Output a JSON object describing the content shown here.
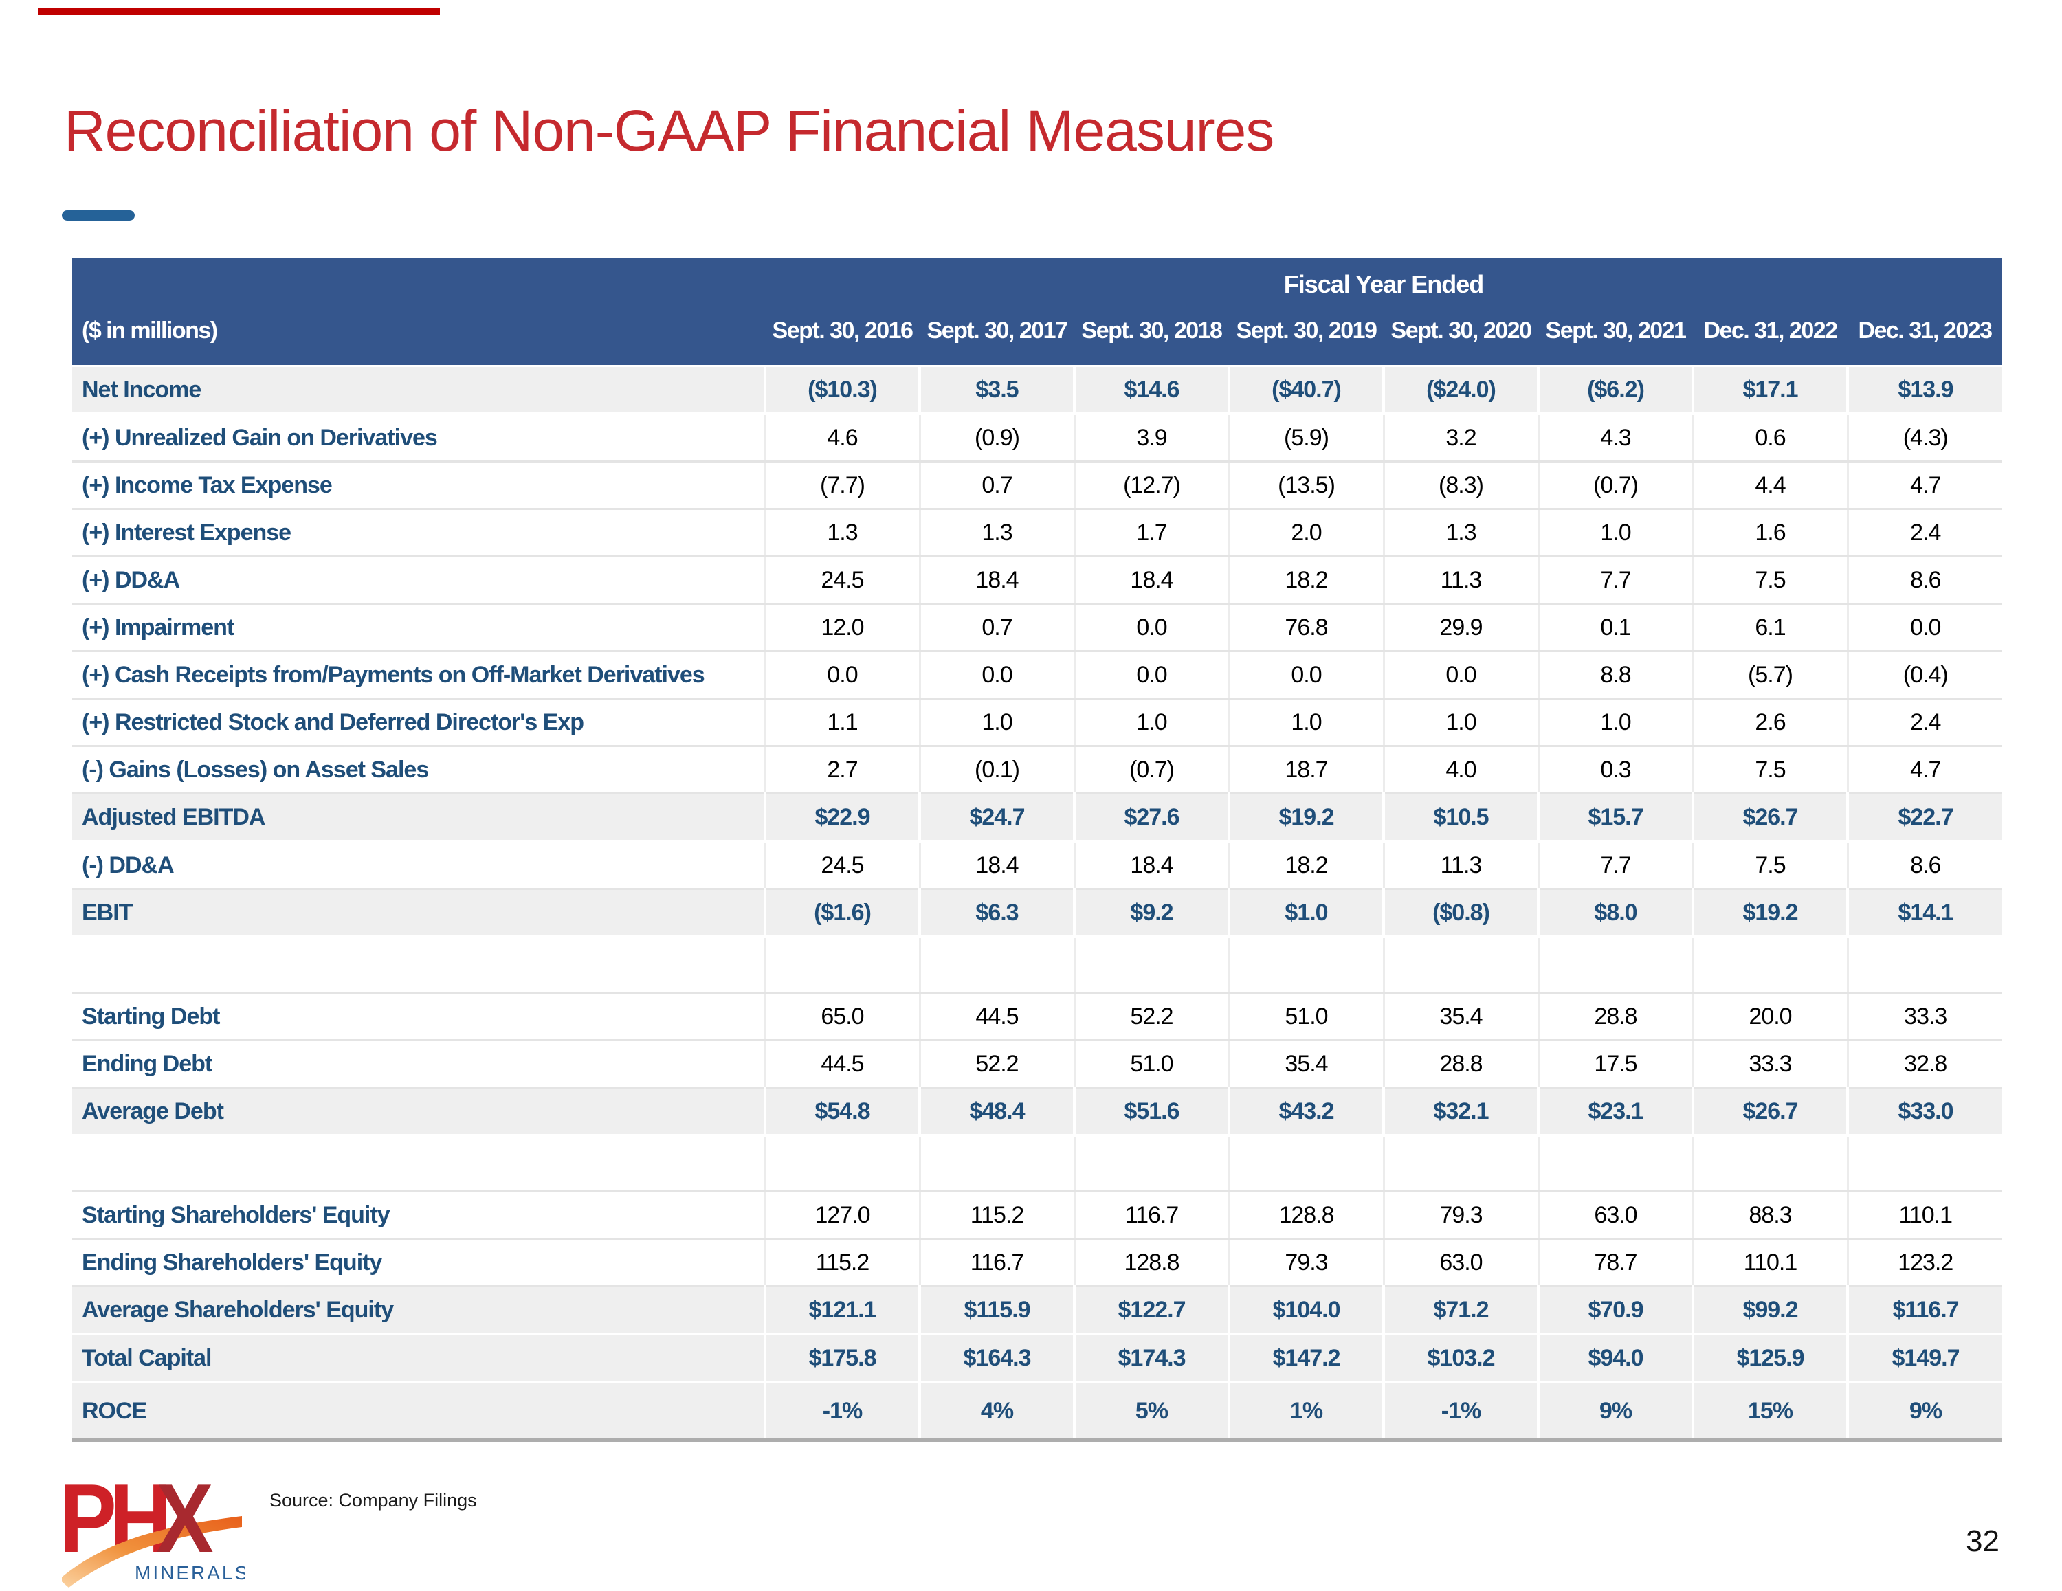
{
  "slide": {
    "title": "Reconciliation of Non-GAAP Financial Measures",
    "source_note": "Source: Company Filings",
    "page_number": "32",
    "logo": {
      "text": "PHX",
      "subtext": "MINERALS"
    }
  },
  "colors": {
    "accent_red": "#C5292E",
    "top_line_red": "#C00000",
    "dash_blue": "#256298",
    "header_blue": "#35568D",
    "label_blue": "#1F4E79",
    "row_gray": "#EFEFEF",
    "grid_line": "#E4E4E4",
    "table_bottom": "#ADADAD",
    "logo_red": "#CE2127",
    "logo_dark_red": "#A8292F",
    "logo_orange": "#ED7D31",
    "logo_blue": "#2A6099"
  },
  "table": {
    "group_header": "Fiscal Year Ended",
    "unit_label": "($ in millions)",
    "columns": [
      "Sept. 30, 2016",
      "Sept. 30, 2017",
      "Sept. 30, 2018",
      "Sept. 30, 2019",
      "Sept. 30, 2020",
      "Sept. 30, 2021",
      "Dec. 31, 2022",
      "Dec. 31, 2023"
    ],
    "rows": [
      {
        "label": "Net Income",
        "style": "total",
        "values": [
          "($10.3)",
          "$3.5",
          "$14.6",
          "($40.7)",
          "($24.0)",
          "($6.2)",
          "$17.1",
          "$13.9"
        ]
      },
      {
        "label": "(+) Unrealized Gain on Derivatives",
        "style": "normal",
        "values": [
          "4.6",
          "(0.9)",
          "3.9",
          "(5.9)",
          "3.2",
          "4.3",
          "0.6",
          "(4.3)"
        ]
      },
      {
        "label": "(+) Income Tax Expense",
        "style": "normal",
        "values": [
          "(7.7)",
          "0.7",
          "(12.7)",
          "(13.5)",
          "(8.3)",
          "(0.7)",
          "4.4",
          "4.7"
        ]
      },
      {
        "label": "(+) Interest Expense",
        "style": "normal",
        "values": [
          "1.3",
          "1.3",
          "1.7",
          "2.0",
          "1.3",
          "1.0",
          "1.6",
          "2.4"
        ]
      },
      {
        "label": "(+) DD&A",
        "style": "normal",
        "values": [
          "24.5",
          "18.4",
          "18.4",
          "18.2",
          "11.3",
          "7.7",
          "7.5",
          "8.6"
        ]
      },
      {
        "label": "(+) Impairment",
        "style": "normal",
        "values": [
          "12.0",
          "0.7",
          "0.0",
          "76.8",
          "29.9",
          "0.1",
          "6.1",
          "0.0"
        ]
      },
      {
        "label": "(+) Cash Receipts from/Payments on Off-Market Derivatives",
        "style": "normal",
        "values": [
          "0.0",
          "0.0",
          "0.0",
          "0.0",
          "0.0",
          "8.8",
          "(5.7)",
          "(0.4)"
        ]
      },
      {
        "label": "(+) Restricted Stock and Deferred Director's Exp",
        "style": "normal",
        "values": [
          "1.1",
          "1.0",
          "1.0",
          "1.0",
          "1.0",
          "1.0",
          "2.6",
          "2.4"
        ]
      },
      {
        "label": "(-) Gains (Losses) on Asset Sales",
        "style": "normal",
        "values": [
          "2.7",
          "(0.1)",
          "(0.7)",
          "18.7",
          "4.0",
          "0.3",
          "7.5",
          "4.7"
        ]
      },
      {
        "label": "Adjusted EBITDA",
        "style": "total",
        "values": [
          "$22.9",
          "$24.7",
          "$27.6",
          "$19.2",
          "$10.5",
          "$15.7",
          "$26.7",
          "$22.7"
        ]
      },
      {
        "label": "(-) DD&A",
        "style": "normal",
        "values": [
          "24.5",
          "18.4",
          "18.4",
          "18.2",
          "11.3",
          "7.7",
          "7.5",
          "8.6"
        ]
      },
      {
        "label": "EBIT",
        "style": "total",
        "values": [
          "($1.6)",
          "$6.3",
          "$9.2",
          "$1.0",
          "($0.8)",
          "$8.0",
          "$19.2",
          "$14.1"
        ]
      },
      {
        "style": "spacer"
      },
      {
        "label": "Starting Debt",
        "style": "normal",
        "values": [
          "65.0",
          "44.5",
          "52.2",
          "51.0",
          "35.4",
          "28.8",
          "20.0",
          "33.3"
        ]
      },
      {
        "label": "Ending Debt",
        "style": "normal",
        "values": [
          "44.5",
          "52.2",
          "51.0",
          "35.4",
          "28.8",
          "17.5",
          "33.3",
          "32.8"
        ]
      },
      {
        "label": "Average Debt",
        "style": "total",
        "values": [
          "$54.8",
          "$48.4",
          "$51.6",
          "$43.2",
          "$32.1",
          "$23.1",
          "$26.7",
          "$33.0"
        ]
      },
      {
        "style": "spacer"
      },
      {
        "label": "Starting Shareholders' Equity",
        "style": "normal",
        "values": [
          "127.0",
          "115.2",
          "116.7",
          "128.8",
          "79.3",
          "63.0",
          "88.3",
          "110.1"
        ]
      },
      {
        "label": "Ending Shareholders' Equity",
        "style": "normal",
        "values": [
          "115.2",
          "116.7",
          "128.8",
          "79.3",
          "63.0",
          "78.7",
          "110.1",
          "123.2"
        ]
      },
      {
        "label": "Average Shareholders' Equity",
        "style": "total",
        "values": [
          "$121.1",
          "$115.9",
          "$122.7",
          "$104.0",
          "$71.2",
          "$70.9",
          "$99.2",
          "$116.7"
        ]
      },
      {
        "label": "Total Capital",
        "style": "total",
        "values": [
          "$175.8",
          "$164.3",
          "$174.3",
          "$147.2",
          "$103.2",
          "$94.0",
          "$125.9",
          "$149.7"
        ]
      },
      {
        "label": "ROCE",
        "style": "total roce",
        "values": [
          "-1%",
          "4%",
          "5%",
          "1%",
          "-1%",
          "9%",
          "15%",
          "9%"
        ]
      }
    ]
  }
}
